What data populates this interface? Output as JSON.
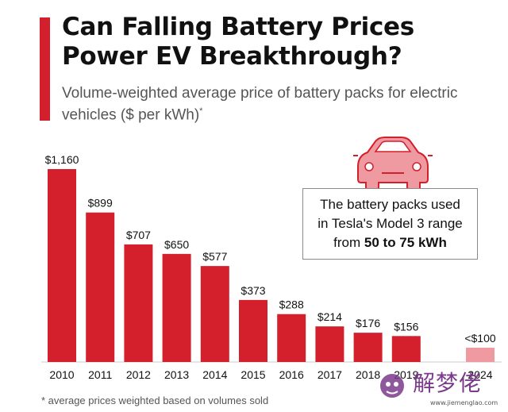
{
  "header": {
    "title": "Can Falling Battery Prices Power EV Breakthrough?",
    "subtitle": "Volume-weighted average price of battery packs for electric vehicles ($ per kWh)",
    "subtitle_mark": "*"
  },
  "callout": {
    "line1": "The battery packs used",
    "line2": "in Tesla's Model 3 range",
    "line3_prefix": "from",
    "line3_strong": "50 to 75 kWh"
  },
  "footnote": "* average prices weighted based on volumes sold",
  "watermark": {
    "text": "解梦佬",
    "url": "www.jiemenglao.com"
  },
  "colors": {
    "bar": "#d41f2c",
    "bar_projected": "#ef9aa0",
    "accent": "#d41f2c"
  },
  "icons": [
    "car-icon",
    "watermark-logo-icon"
  ],
  "chart_data": {
    "type": "bar",
    "categories": [
      "2010",
      "2011",
      "2012",
      "2013",
      "2014",
      "2015",
      "2016",
      "2017",
      "2018",
      "2019",
      "2024"
    ],
    "values": [
      1160,
      899,
      707,
      650,
      577,
      373,
      288,
      214,
      176,
      156,
      100
    ],
    "labels": [
      "$1,160",
      "$899",
      "$707",
      "$650",
      "$577",
      "$373",
      "$288",
      "$214",
      "$176",
      "$156",
      "<$100"
    ],
    "projected": [
      false,
      false,
      false,
      false,
      false,
      false,
      false,
      false,
      false,
      false,
      true
    ],
    "title": "Can Falling Battery Prices Power EV Breakthrough?",
    "xlabel": "",
    "ylabel": "",
    "ylim": [
      0,
      1160
    ],
    "grid": false,
    "legend": "none"
  }
}
